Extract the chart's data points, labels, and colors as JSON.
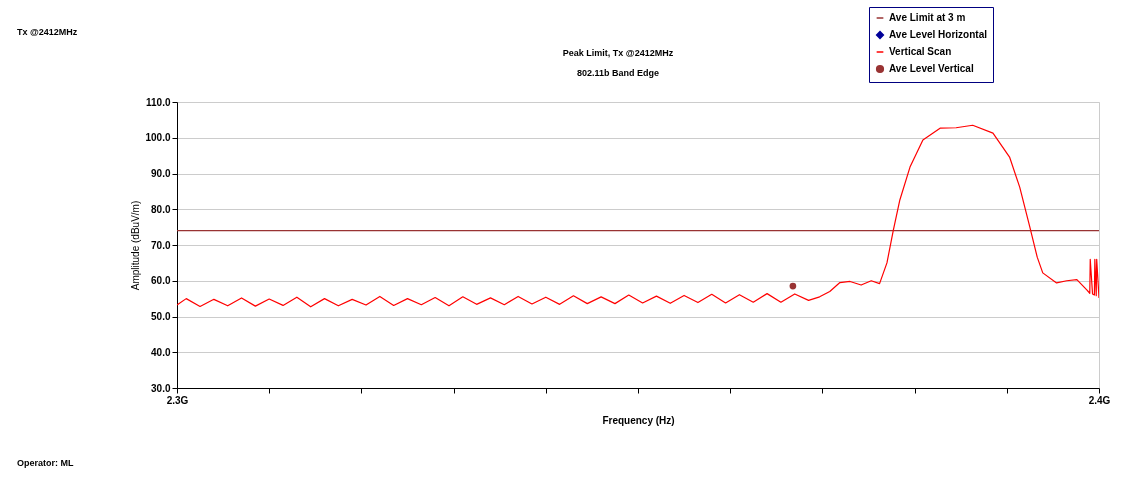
{
  "chart_data": {
    "type": "line",
    "title": "Peak Limit, Tx @2412MHz",
    "subtitle": "802.11b Band Edge",
    "xlabel": "Frequency (Hz)",
    "ylabel": "Amplitude (dBuV/m)",
    "xlim": [
      2.3,
      2.4
    ],
    "ylim": [
      30,
      110
    ],
    "xticks": [
      {
        "value": 2.3,
        "label": "2.3G"
      },
      {
        "value": 2.31,
        "label": null
      },
      {
        "value": 2.32,
        "label": null
      },
      {
        "value": 2.33,
        "label": null
      },
      {
        "value": 2.34,
        "label": null
      },
      {
        "value": 2.35,
        "label": null
      },
      {
        "value": 2.36,
        "label": null
      },
      {
        "value": 2.37,
        "label": null
      },
      {
        "value": 2.38,
        "label": null
      },
      {
        "value": 2.39,
        "label": null
      },
      {
        "value": 2.4,
        "label": "2.4G"
      }
    ],
    "yticks": [
      {
        "value": 30,
        "label": "30.0"
      },
      {
        "value": 40,
        "label": "40.0"
      },
      {
        "value": 50,
        "label": "50.0"
      },
      {
        "value": 60,
        "label": "60.0"
      },
      {
        "value": 70,
        "label": "70.0"
      },
      {
        "value": 80,
        "label": "80.0"
      },
      {
        "value": 90,
        "label": "90.0"
      },
      {
        "value": 100,
        "label": "100.0"
      },
      {
        "value": 110,
        "label": "110.0"
      }
    ],
    "grid": "y",
    "legend": "top right",
    "annotations": [
      "Tx @2412MHz",
      "Operator: ML"
    ],
    "series": [
      {
        "name": "Ave Limit at 3 m",
        "color": "#993333",
        "x": [
          2.3,
          2.4
        ],
        "values": [
          74,
          74
        ]
      },
      {
        "name": "Ave Level Horizontal",
        "type": "scatter",
        "marker": "diamond",
        "color": "#000099"
      },
      {
        "name": "Vertical Scan",
        "color": "#ff0000",
        "x": [
          2.3,
          2.301,
          2.3025,
          2.304,
          2.3055,
          2.307,
          2.3085,
          2.31,
          2.3115,
          2.313,
          2.3145,
          2.316,
          2.3175,
          2.319,
          2.3205,
          2.322,
          2.3235,
          2.325,
          2.3265,
          2.328,
          2.3295,
          2.331,
          2.3325,
          2.334,
          2.3355,
          2.337,
          2.3385,
          2.34,
          2.3415,
          2.343,
          2.3445,
          2.346,
          2.3475,
          2.349,
          2.3505,
          2.352,
          2.3535,
          2.355,
          2.3565,
          2.358,
          2.3595,
          2.361,
          2.3625,
          2.364,
          2.3655,
          2.367,
          2.3685,
          2.3697,
          2.3708,
          2.3719,
          2.373,
          2.3742,
          2.3753,
          2.3762,
          2.377,
          2.3777,
          2.3784,
          2.3795,
          2.3809,
          2.3828,
          2.3845,
          2.3863,
          2.3885,
          2.3903,
          2.3914,
          2.3925,
          2.3933,
          2.3939,
          2.3954,
          2.3965,
          2.3976,
          2.3987,
          2.399,
          2.39905,
          2.3993,
          2.3995,
          2.39955,
          2.3997,
          2.39975,
          2.4
        ],
        "values": [
          53.2,
          55.0,
          52.8,
          54.8,
          53.0,
          55.2,
          52.9,
          54.9,
          53.1,
          55.4,
          52.7,
          55.0,
          53.0,
          54.8,
          53.2,
          55.6,
          53.1,
          55.0,
          53.3,
          55.3,
          53.0,
          55.5,
          53.4,
          55.2,
          53.3,
          55.6,
          53.5,
          55.4,
          53.4,
          55.8,
          53.6,
          55.5,
          53.6,
          56.0,
          53.8,
          55.7,
          53.7,
          55.9,
          53.9,
          56.2,
          53.8,
          56.1,
          54.0,
          56.4,
          54.0,
          56.3,
          54.5,
          55.5,
          57.0,
          59.5,
          59.8,
          58.8,
          60.0,
          59.2,
          65.0,
          74.2,
          82.6,
          91.8,
          99.4,
          102.7,
          102.8,
          103.5,
          101.3,
          94.6,
          86.2,
          75.0,
          66.6,
          62.2,
          59.4,
          60.0,
          60.3,
          57.4,
          56.5,
          66.0,
          56.3,
          56.0,
          66.0,
          55.8,
          66.0,
          55.2
        ]
      },
      {
        "name": "Ave Level Vertical",
        "type": "scatter",
        "marker": "circle",
        "color": "#993333",
        "x": [
          2.3668
        ],
        "values": [
          58.5
        ]
      }
    ]
  }
}
